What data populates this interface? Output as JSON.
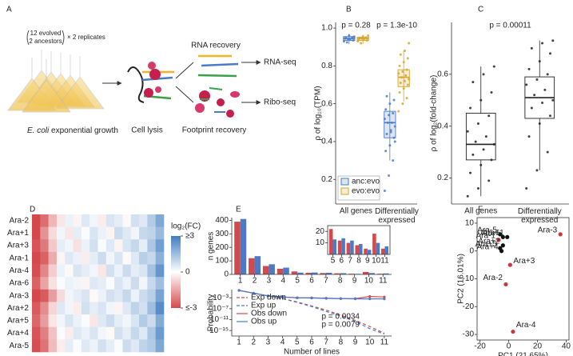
{
  "panel_labels": [
    "A",
    "B",
    "C",
    "D",
    "E",
    "F"
  ],
  "diagram": {
    "replicate_top": "12 evolved",
    "replicate_bottom": "2 ancestors",
    "replicate_times": "× 2 replicates",
    "growth_species": "E. coli",
    "growth_text": "exponential growth",
    "lysis": "Cell lysis",
    "rna_recovery": "RNA recovery",
    "footprint_recovery": "Footprint recovery",
    "rna_seq": "RNA-seq",
    "ribo_seq": "Ribo-seq"
  },
  "chart_data": [
    {
      "type": "box",
      "ylabel": "ρ of log₁₀(TPM)",
      "categories": [
        "All genes",
        "Differentially expressed"
      ],
      "ylim": [
        0.07,
        1.03
      ],
      "yticks": [
        0.2,
        0.4,
        0.6,
        0.8,
        {
          "value": 1,
          "label": "1.0"
        }
      ],
      "annotations": [
        "p = 0.28",
        "p = 1.3e-10"
      ],
      "legend": "bottom-left",
      "series": [
        {
          "name": "anc:evo",
          "color": "#4b7bc7",
          "boxes": [
            {
              "whisker_low": 0.915,
              "q1": 0.935,
              "median": 0.945,
              "q3": 0.955,
              "whisker_high": 0.97,
              "points": [
                0.93,
                0.94,
                0.95,
                0.945,
                0.96,
                0.935,
                0.95,
                0.94,
                0.955,
                0.925
              ]
            },
            {
              "whisker_low": 0.3,
              "q1": 0.42,
              "median": 0.5,
              "q3": 0.56,
              "whisker_high": 0.66,
              "points": [
                0.14,
                0.22,
                0.3,
                0.35,
                0.38,
                0.42,
                0.44,
                0.46,
                0.48,
                0.5,
                0.5,
                0.52,
                0.54,
                0.55,
                0.57,
                0.6,
                0.62,
                0.64,
                0.45,
                0.4
              ]
            }
          ]
        },
        {
          "name": "evo:evo",
          "color": "#d6a52a",
          "boxes": [
            {
              "whisker_low": 0.915,
              "q1": 0.935,
              "median": 0.945,
              "q3": 0.952,
              "whisker_high": 0.965,
              "points": [
                0.93,
                0.945,
                0.95,
                0.94,
                0.955,
                0.935,
                0.948,
                0.942,
                0.96,
                0.92
              ]
            },
            {
              "whisker_low": 0.61,
              "q1": 0.69,
              "median": 0.74,
              "q3": 0.78,
              "whisker_high": 0.88,
              "points": [
                0.56,
                0.6,
                0.63,
                0.66,
                0.68,
                0.7,
                0.71,
                0.72,
                0.73,
                0.74,
                0.75,
                0.76,
                0.77,
                0.78,
                0.8,
                0.82,
                0.84,
                0.86,
                0.88,
                0.92
              ]
            }
          ]
        }
      ]
    },
    {
      "type": "box",
      "ylabel": "ρ of log₂(fold-change)",
      "categories": [
        "All genes",
        "Differentially expressed"
      ],
      "ylim": [
        0.1,
        0.8
      ],
      "yticks": [
        0.2,
        0.4,
        0.6
      ],
      "annotations": [
        "p = 0.00011"
      ],
      "series": [
        {
          "color": "#222222",
          "boxes": [
            {
              "whisker_low": 0.13,
              "q1": 0.27,
              "median": 0.33,
              "q3": 0.45,
              "whisker_high": 0.63,
              "points": [
                0.13,
                0.16,
                0.19,
                0.22,
                0.25,
                0.27,
                0.29,
                0.31,
                0.33,
                0.34,
                0.36,
                0.38,
                0.41,
                0.44,
                0.47,
                0.5,
                0.53,
                0.57,
                0.6,
                0.63
              ]
            },
            {
              "whisker_low": 0.23,
              "q1": 0.43,
              "median": 0.51,
              "q3": 0.59,
              "whisker_high": 0.73,
              "points": [
                0.16,
                0.23,
                0.3,
                0.36,
                0.41,
                0.44,
                0.47,
                0.49,
                0.5,
                0.52,
                0.54,
                0.56,
                0.58,
                0.6,
                0.62,
                0.65,
                0.68,
                0.7,
                0.72,
                0.73
              ]
            }
          ]
        }
      ]
    },
    {
      "type": "heatmap",
      "categories": [
        "Ara-2",
        "Ara+1",
        "Ara+3",
        "Ara-1",
        "Ara-4",
        "Ara-6",
        "Ara-3",
        "Ara+2",
        "Ara+5",
        "Ara+4",
        "Ara-5"
      ],
      "label_colors": [
        "#c8383c",
        "#222222",
        "#c8383c",
        "#c8383c",
        "#c8383c",
        "#222222",
        "#c8383c",
        "#222222",
        "#222222",
        "#222222",
        "#222222"
      ],
      "values": [
        [
          -3,
          -2.4,
          -1.2,
          -0.4,
          0.3,
          -0.2,
          0.5,
          0.2,
          -0.3,
          0.6,
          0.4,
          -0.1,
          0.7,
          0.5,
          1.2,
          2.0
        ],
        [
          -3,
          -1.8,
          -0.6,
          0.2,
          -0.4,
          0.4,
          0.1,
          0.6,
          0.3,
          -0.2,
          0.8,
          0.5,
          0.2,
          0.9,
          1.0,
          1.6
        ],
        [
          -2.8,
          -2.2,
          -0.9,
          0.4,
          0.2,
          -0.5,
          0.3,
          0.7,
          0.1,
          0.5,
          -0.2,
          0.6,
          0.9,
          0.4,
          1.3,
          2.2
        ],
        [
          -3,
          -2.6,
          -1.4,
          -0.2,
          0.5,
          0.3,
          -0.3,
          0.4,
          0.8,
          0.2,
          0.6,
          -0.1,
          0.5,
          1.1,
          0.9,
          1.8
        ],
        [
          -2.9,
          -2.0,
          -0.8,
          0.3,
          -0.1,
          0.6,
          0.4,
          0.2,
          -0.4,
          0.7,
          0.3,
          0.8,
          0.4,
          0.6,
          1.4,
          2.4
        ],
        [
          -2.6,
          -1.5,
          -0.5,
          0.1,
          0.3,
          0.2,
          -0.2,
          0.5,
          0.4,
          0.1,
          0.6,
          0.3,
          0.8,
          0.2,
          0.9,
          1.5
        ],
        [
          -3,
          -2.7,
          -1.6,
          -0.6,
          0.2,
          0.4,
          0.6,
          -0.1,
          0.3,
          0.7,
          0.5,
          0.9,
          0.3,
          0.8,
          1.1,
          2.1
        ],
        [
          -2.7,
          -1.9,
          -0.7,
          0.5,
          0.2,
          -0.3,
          0.7,
          0.4,
          0.6,
          0.2,
          -0.2,
          0.5,
          1.0,
          0.7,
          1.5,
          2.6
        ],
        [
          -2.5,
          -1.6,
          -0.4,
          0.2,
          0.6,
          0.3,
          0.1,
          -0.4,
          0.5,
          0.8,
          0.4,
          0.2,
          0.6,
          1.2,
          0.8,
          1.9
        ],
        [
          -2.8,
          -2.1,
          -1.0,
          0.1,
          -0.3,
          0.5,
          0.3,
          0.6,
          0.2,
          -0.1,
          0.7,
          0.4,
          0.9,
          0.5,
          1.3,
          2.3
        ],
        [
          -2.9,
          -2.3,
          -1.1,
          -0.3,
          0.4,
          0.1,
          0.5,
          0.3,
          0.7,
          0.4,
          0.1,
          0.8,
          0.5,
          1.0,
          1.2,
          2.0
        ]
      ],
      "clim": [
        -3,
        3
      ],
      "colors": [
        "#d4494c",
        "#ffffff",
        "#3f7cc0"
      ],
      "legend_title": "log₂(FC)",
      "cticks": [
        {
          "value": 3,
          "label": "≥3"
        },
        0,
        {
          "value": -3,
          "label": "≤-3"
        }
      ]
    },
    {
      "type": "bar",
      "ylabel": "n genes",
      "x": [
        1,
        2,
        3,
        4,
        5,
        6,
        7,
        8,
        9,
        10,
        11
      ],
      "xlim": [
        0.4,
        11.6
      ],
      "xticks": [
        1,
        2,
        3,
        4,
        5,
        6,
        7,
        8,
        9,
        10,
        11
      ],
      "ylim": [
        0,
        420
      ],
      "yticks": [
        0,
        100,
        200,
        300,
        400
      ],
      "series": [
        {
          "color": "#d4494c",
          "values": [
            390,
            120,
            62,
            42,
            22,
            12,
            10,
            8,
            5,
            18,
            5
          ]
        },
        {
          "color": "#4b7bc7",
          "values": [
            410,
            135,
            75,
            50,
            13,
            14,
            12,
            9,
            4,
            10,
            7
          ]
        }
      ]
    },
    {
      "type": "bar",
      "x": [
        5,
        6,
        7,
        8,
        9,
        10,
        11
      ],
      "xlim": [
        4.4,
        11.6
      ],
      "xticks": [
        5,
        6,
        7,
        8,
        9,
        10,
        11
      ],
      "ylim": [
        0,
        25
      ],
      "yticks": [
        10,
        20
      ],
      "frame": true,
      "series": [
        {
          "color": "#d4494c",
          "values": [
            22,
            12,
            10,
            8,
            5,
            18,
            5
          ]
        },
        {
          "color": "#4b7bc7",
          "values": [
            13,
            14,
            12,
            9,
            4,
            10,
            7
          ]
        }
      ]
    },
    {
      "type": "line",
      "ylabel": "Probability",
      "xlabel": "Number of lines",
      "x": [
        1,
        2,
        3,
        4,
        5,
        6,
        7,
        8,
        9,
        10,
        11
      ],
      "xlim": [
        0.5,
        11.5
      ],
      "xticks": [
        1,
        2,
        3,
        4,
        5,
        6,
        7,
        8,
        9,
        10,
        11
      ],
      "log_y": true,
      "ylim": [
        1e-17,
        1
      ],
      "yticks": [
        {
          "value": 0.001,
          "label": "10⁻³"
        },
        {
          "value": 1e-07,
          "label": "10⁻⁷"
        },
        {
          "value": 1e-11,
          "label": "10⁻¹¹"
        },
        {
          "value": 1e-15,
          "label": "10⁻¹⁵"
        }
      ],
      "legend": "bottom-left",
      "series": [
        {
          "name": "Exp down",
          "color": "#d4494c",
          "dash": true,
          "values": [
            0.5,
            0.05,
            0.005,
            0.0005,
            3e-05,
            1e-06,
            3e-08,
            5e-10,
            5e-12,
            3e-14,
            1e-16
          ]
        },
        {
          "name": "Exp up",
          "color": "#4b7bc7",
          "dash": true,
          "values": [
            0.5,
            0.05,
            0.005,
            0.0005,
            2e-05,
            6e-07,
            1e-08,
            2e-10,
            2e-12,
            5e-15,
            5e-17
          ]
        },
        {
          "name": "Obs down",
          "color": "#d4494c",
          "dash": false,
          "values": [
            0.5,
            0.05,
            0.005,
            0.002,
            0.001,
            0.001,
            0.0007,
            0.0005,
            0.0005,
            0.003,
            0.002
          ]
        },
        {
          "name": "Obs up",
          "color": "#4b7bc7",
          "dash": false,
          "values": [
            0.5,
            0.05,
            0.005,
            0.002,
            0.001,
            0.0008,
            0.0006,
            0.0005,
            0.0004,
            0.0004,
            0.0004
          ]
        }
      ],
      "annotations": [
        {
          "text": "p = 0.0034",
          "color": "#4b7bc7"
        },
        {
          "text": "p = 0.0079",
          "color": "#d4494c"
        }
      ]
    },
    {
      "type": "scatter",
      "xlabel": "PC1 (21.65%)",
      "ylabel": "PC2 (16.01%)",
      "labels": [
        "Ara-3",
        "Ara-1",
        "Ara+1",
        "Ara-5",
        "Ara-6",
        "Ara+5",
        "Ara+2",
        "Ara+4",
        "Ara+3",
        "Ara-2",
        "Ara-4"
      ],
      "x": [
        36,
        -7,
        -1,
        -6,
        -4,
        -6,
        -4,
        -5,
        1,
        -2,
        3
      ],
      "y": [
        6,
        4,
        5,
        6,
        5,
        1,
        2,
        0,
        -5,
        -12,
        -29
      ],
      "colors": [
        "#c8383c",
        "#c8383c",
        "#111111",
        "#111111",
        "#111111",
        "#111111",
        "#111111",
        "#111111",
        "#c8383c",
        "#c8383c",
        "#c8383c"
      ],
      "xlim": [
        -22,
        42
      ],
      "xticks": [
        -20,
        0,
        20,
        40
      ],
      "ylim": [
        -32,
        12
      ],
      "yticks": [
        -30,
        -20,
        -10,
        0,
        10
      ],
      "frame": true
    }
  ]
}
